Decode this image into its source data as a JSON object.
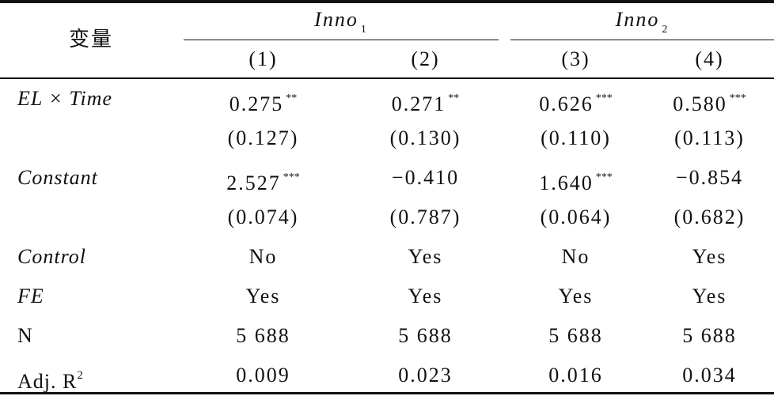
{
  "header": {
    "variable": "变量",
    "groups": [
      {
        "name": "Inno",
        "sub": "1"
      },
      {
        "name": "Inno",
        "sub": "2"
      }
    ],
    "columns": [
      "(1)",
      "(2)",
      "(3)",
      "(4)"
    ]
  },
  "rows": [
    {
      "label": "EL × Time",
      "cells": [
        {
          "value": "0.275",
          "stars": "**"
        },
        {
          "value": "0.271",
          "stars": "**"
        },
        {
          "value": "0.626",
          "stars": "***"
        },
        {
          "value": "0.580",
          "stars": "***"
        }
      ]
    },
    {
      "cells": [
        {
          "value": "(0.127)"
        },
        {
          "value": "(0.130)"
        },
        {
          "value": "(0.110)"
        },
        {
          "value": "(0.113)"
        }
      ]
    },
    {
      "label": "Constant",
      "cells": [
        {
          "value": "2.527",
          "stars": "***"
        },
        {
          "value": "−0.410"
        },
        {
          "value": "1.640",
          "stars": "***"
        },
        {
          "value": "−0.854"
        }
      ]
    },
    {
      "cells": [
        {
          "value": "(0.074)"
        },
        {
          "value": "(0.787)"
        },
        {
          "value": "(0.064)"
        },
        {
          "value": "(0.682)"
        }
      ]
    },
    {
      "label": "Control",
      "cells": [
        {
          "value": "No"
        },
        {
          "value": "Yes"
        },
        {
          "value": "No"
        },
        {
          "value": "Yes"
        }
      ]
    },
    {
      "label": "FE",
      "cells": [
        {
          "value": "Yes"
        },
        {
          "value": "Yes"
        },
        {
          "value": "Yes"
        },
        {
          "value": "Yes"
        }
      ]
    },
    {
      "label": "N",
      "cells": [
        {
          "value": "5 688"
        },
        {
          "value": "5 688"
        },
        {
          "value": "5 688"
        },
        {
          "value": "5 688"
        }
      ]
    },
    {
      "label": "Adj. R",
      "label_sup": "2",
      "cells": [
        {
          "value": "0.009"
        },
        {
          "value": "0.023"
        },
        {
          "value": "0.016"
        },
        {
          "value": "0.034"
        }
      ]
    }
  ]
}
